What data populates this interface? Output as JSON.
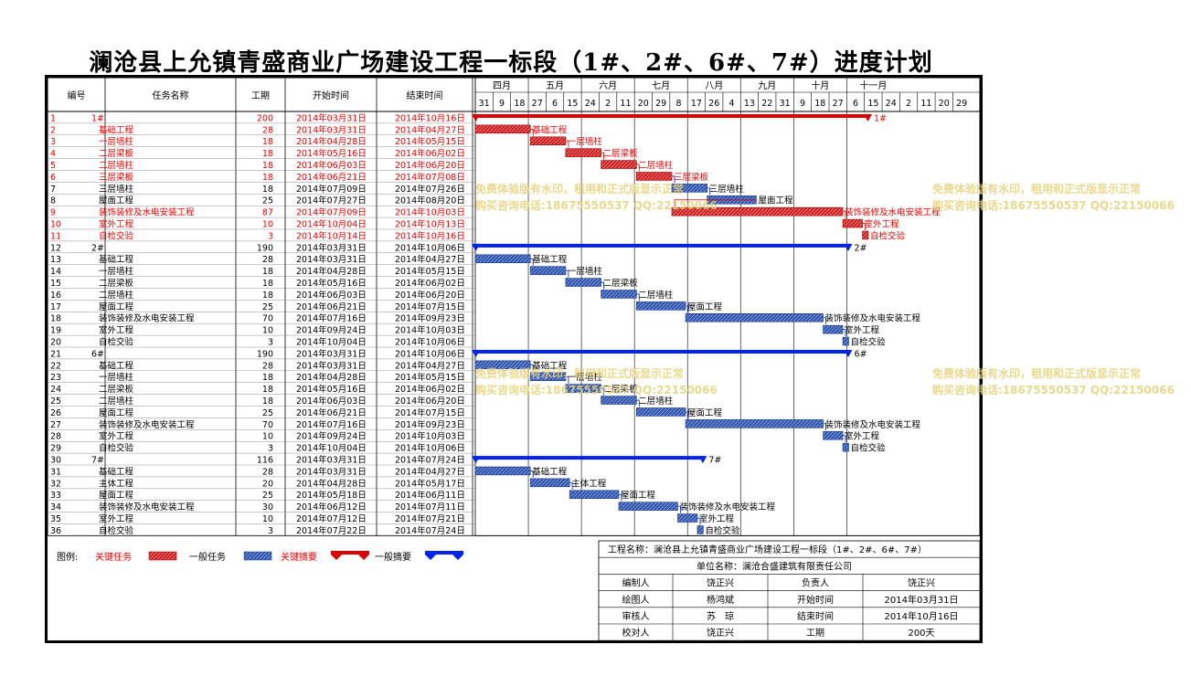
{
  "title": "澜沧县上允镇青盛商业广场建设工程一标段（1#、2#、6#、7#）进度计划",
  "headers": {
    "id": "编号",
    "name": "任务名称",
    "dur": "工期",
    "start": "开始时间",
    "end": "结束时间"
  },
  "months": [
    "四月",
    "五月",
    "六月",
    "七月",
    "八月",
    "九月",
    "十月",
    "十一月"
  ],
  "days": [
    "31",
    "9",
    "18",
    "27",
    "6",
    "15",
    "24",
    "2",
    "11",
    "20",
    "29",
    "8",
    "17",
    "26",
    "4",
    "13",
    "22",
    "31",
    "9",
    "18",
    "27",
    "6",
    "15",
    "24",
    "2",
    "11",
    "20",
    "29"
  ],
  "colors": {
    "critical": "#dd0000",
    "normal": "#2e5aa8",
    "summary_blue": "#0022ee",
    "critical_text": "#ee0000",
    "watermark": "#e6d27a"
  },
  "tasks": [
    {
      "id": "1",
      "name": "1#",
      "dur": "200",
      "start": "2014年03月31日",
      "end": "2014年10月16日",
      "crit": true,
      "summary": true,
      "label": "1#"
    },
    {
      "id": "2",
      "name": "基础工程",
      "dur": "28",
      "start": "2014年03月31日",
      "end": "2014年04月27日",
      "crit": true,
      "label": "基础工程"
    },
    {
      "id": "3",
      "name": "一层墙柱",
      "dur": "18",
      "start": "2014年04月28日",
      "end": "2014年05月15日",
      "crit": true,
      "label": "一层墙柱"
    },
    {
      "id": "4",
      "name": "二层梁板",
      "dur": "18",
      "start": "2014年05月16日",
      "end": "2014年06月02日",
      "crit": true,
      "label": "二层梁板"
    },
    {
      "id": "5",
      "name": "二层墙柱",
      "dur": "18",
      "start": "2014年06月03日",
      "end": "2014年06月20日",
      "crit": true,
      "label": "二层墙柱"
    },
    {
      "id": "6",
      "name": "三层梁板",
      "dur": "18",
      "start": "2014年06月21日",
      "end": "2014年07月08日",
      "crit": true,
      "label": "三层梁板"
    },
    {
      "id": "7",
      "name": "三层墙柱",
      "dur": "18",
      "start": "2014年07月09日",
      "end": "2014年07月26日",
      "crit": false,
      "label": "三层墙柱"
    },
    {
      "id": "8",
      "name": "屋面工程",
      "dur": "25",
      "start": "2014年07月27日",
      "end": "2014年08月20日",
      "crit": false,
      "label": "屋面工程"
    },
    {
      "id": "9",
      "name": "装饰装修及水电安装工程",
      "dur": "87",
      "start": "2014年07月09日",
      "end": "2014年10月03日",
      "crit": true,
      "label": "装饰装修及水电安装工程"
    },
    {
      "id": "10",
      "name": "室外工程",
      "dur": "10",
      "start": "2014年10月04日",
      "end": "2014年10月13日",
      "crit": true,
      "label": "室外工程"
    },
    {
      "id": "11",
      "name": "自检交验",
      "dur": "3",
      "start": "2014年10月14日",
      "end": "2014年10月16日",
      "crit": true,
      "label": "自检交验"
    },
    {
      "id": "12",
      "name": "2#",
      "dur": "190",
      "start": "2014年03月31日",
      "end": "2014年10月06日",
      "crit": false,
      "summary": true,
      "label": "2#"
    },
    {
      "id": "13",
      "name": "基础工程",
      "dur": "28",
      "start": "2014年03月31日",
      "end": "2014年04月27日",
      "crit": false,
      "label": "基础工程"
    },
    {
      "id": "14",
      "name": "一层墙柱",
      "dur": "18",
      "start": "2014年04月28日",
      "end": "2014年05月15日",
      "crit": false,
      "label": "一层墙柱"
    },
    {
      "id": "15",
      "name": "二层梁板",
      "dur": "18",
      "start": "2014年05月16日",
      "end": "2014年06月02日",
      "crit": false,
      "label": "二层梁板"
    },
    {
      "id": "16",
      "name": "二层墙柱",
      "dur": "18",
      "start": "2014年06月03日",
      "end": "2014年06月20日",
      "crit": false,
      "label": "二层墙柱"
    },
    {
      "id": "17",
      "name": "屋面工程",
      "dur": "25",
      "start": "2014年06月21日",
      "end": "2014年07月15日",
      "crit": false,
      "label": "屋面工程"
    },
    {
      "id": "18",
      "name": "装饰装修及水电安装工程",
      "dur": "70",
      "start": "2014年07月16日",
      "end": "2014年09月23日",
      "crit": false,
      "label": "装饰装修及水电安装工程"
    },
    {
      "id": "19",
      "name": "室外工程",
      "dur": "10",
      "start": "2014年09月24日",
      "end": "2014年10月03日",
      "crit": false,
      "label": "室外工程"
    },
    {
      "id": "20",
      "name": "自检交验",
      "dur": "3",
      "start": "2014年10月04日",
      "end": "2014年10月06日",
      "crit": false,
      "label": "自检交验"
    },
    {
      "id": "21",
      "name": "6#",
      "dur": "190",
      "start": "2014年03月31日",
      "end": "2014年10月06日",
      "crit": false,
      "summary": true,
      "label": "6#"
    },
    {
      "id": "22",
      "name": "基础工程",
      "dur": "28",
      "start": "2014年03月31日",
      "end": "2014年04月27日",
      "crit": false,
      "label": "基础工程"
    },
    {
      "id": "23",
      "name": "一层墙柱",
      "dur": "18",
      "start": "2014年04月28日",
      "end": "2014年05月15日",
      "crit": false,
      "label": "一层墙柱"
    },
    {
      "id": "24",
      "name": "二层梁板",
      "dur": "18",
      "start": "2014年05月16日",
      "end": "2014年06月02日",
      "crit": false,
      "label": "二层梁板"
    },
    {
      "id": "25",
      "name": "二层墙柱",
      "dur": "18",
      "start": "2014年06月03日",
      "end": "2014年06月20日",
      "crit": false,
      "label": "二层墙柱"
    },
    {
      "id": "26",
      "name": "屋面工程",
      "dur": "25",
      "start": "2014年06月21日",
      "end": "2014年07月15日",
      "crit": false,
      "label": "屋面工程"
    },
    {
      "id": "27",
      "name": "装饰装修及水电安装工程",
      "dur": "70",
      "start": "2014年07月16日",
      "end": "2014年09月23日",
      "crit": false,
      "label": "装饰装修及水电安装工程"
    },
    {
      "id": "28",
      "name": "室外工程",
      "dur": "10",
      "start": "2014年09月24日",
      "end": "2014年10月03日",
      "crit": false,
      "label": "室外工程"
    },
    {
      "id": "29",
      "name": "自检交验",
      "dur": "3",
      "start": "2014年10月04日",
      "end": "2014年10月06日",
      "crit": false,
      "label": "自检交验"
    },
    {
      "id": "30",
      "name": "7#",
      "dur": "116",
      "start": "2014年03月31日",
      "end": "2014年07月24日",
      "crit": false,
      "summary": true,
      "label": "7#"
    },
    {
      "id": "31",
      "name": "基础工程",
      "dur": "28",
      "start": "2014年03月31日",
      "end": "2014年04月27日",
      "crit": false,
      "label": "基础工程"
    },
    {
      "id": "32",
      "name": "主体工程",
      "dur": "20",
      "start": "2014年04月28日",
      "end": "2014年05月17日",
      "crit": false,
      "label": "主体工程"
    },
    {
      "id": "33",
      "name": "屋面工程",
      "dur": "25",
      "start": "2014年05月18日",
      "end": "2014年06月11日",
      "crit": false,
      "label": "屋面工程"
    },
    {
      "id": "34",
      "name": "装饰装修及水电安装工程",
      "dur": "30",
      "start": "2014年06月12日",
      "end": "2014年07月11日",
      "crit": false,
      "label": "装饰装修及水电安装工程"
    },
    {
      "id": "35",
      "name": "室外工程",
      "dur": "10",
      "start": "2014年07月12日",
      "end": "2014年07月21日",
      "crit": false,
      "label": "室外工程"
    },
    {
      "id": "36",
      "name": "自检交验",
      "dur": "3",
      "start": "2014年07月22日",
      "end": "2014年07月24日",
      "crit": false,
      "label": "自检交验"
    }
  ],
  "legend": {
    "prefix": "图例:",
    "crit_task": "关键任务",
    "normal_task": "一般任务",
    "crit_summary": "关键摘要",
    "normal_summary": "一般摘要"
  },
  "info": {
    "project_line": "工程名称：澜沧县上允镇青盛商业广场建设工程一标段（1#、2#、6#、7#）",
    "unit_line": "单位名称：澜沧合盛建筑有限责任公司",
    "rows": [
      [
        "编制人",
        "饶正兴",
        "负责人",
        "饶正兴"
      ],
      [
        "绘图人",
        "杨鸿斌",
        "开始时间",
        "2014年03月31日"
      ],
      [
        "审核人",
        "苏　琼",
        "结束时间",
        "2014年10月16日"
      ],
      [
        "校对人",
        "饶正兴",
        "工期",
        "200天"
      ]
    ]
  },
  "watermark": {
    "line1": "免费体验版有水印，租用和正式版显示正常",
    "line2": "购买咨询电话:18675550537 QQ:22150066"
  }
}
